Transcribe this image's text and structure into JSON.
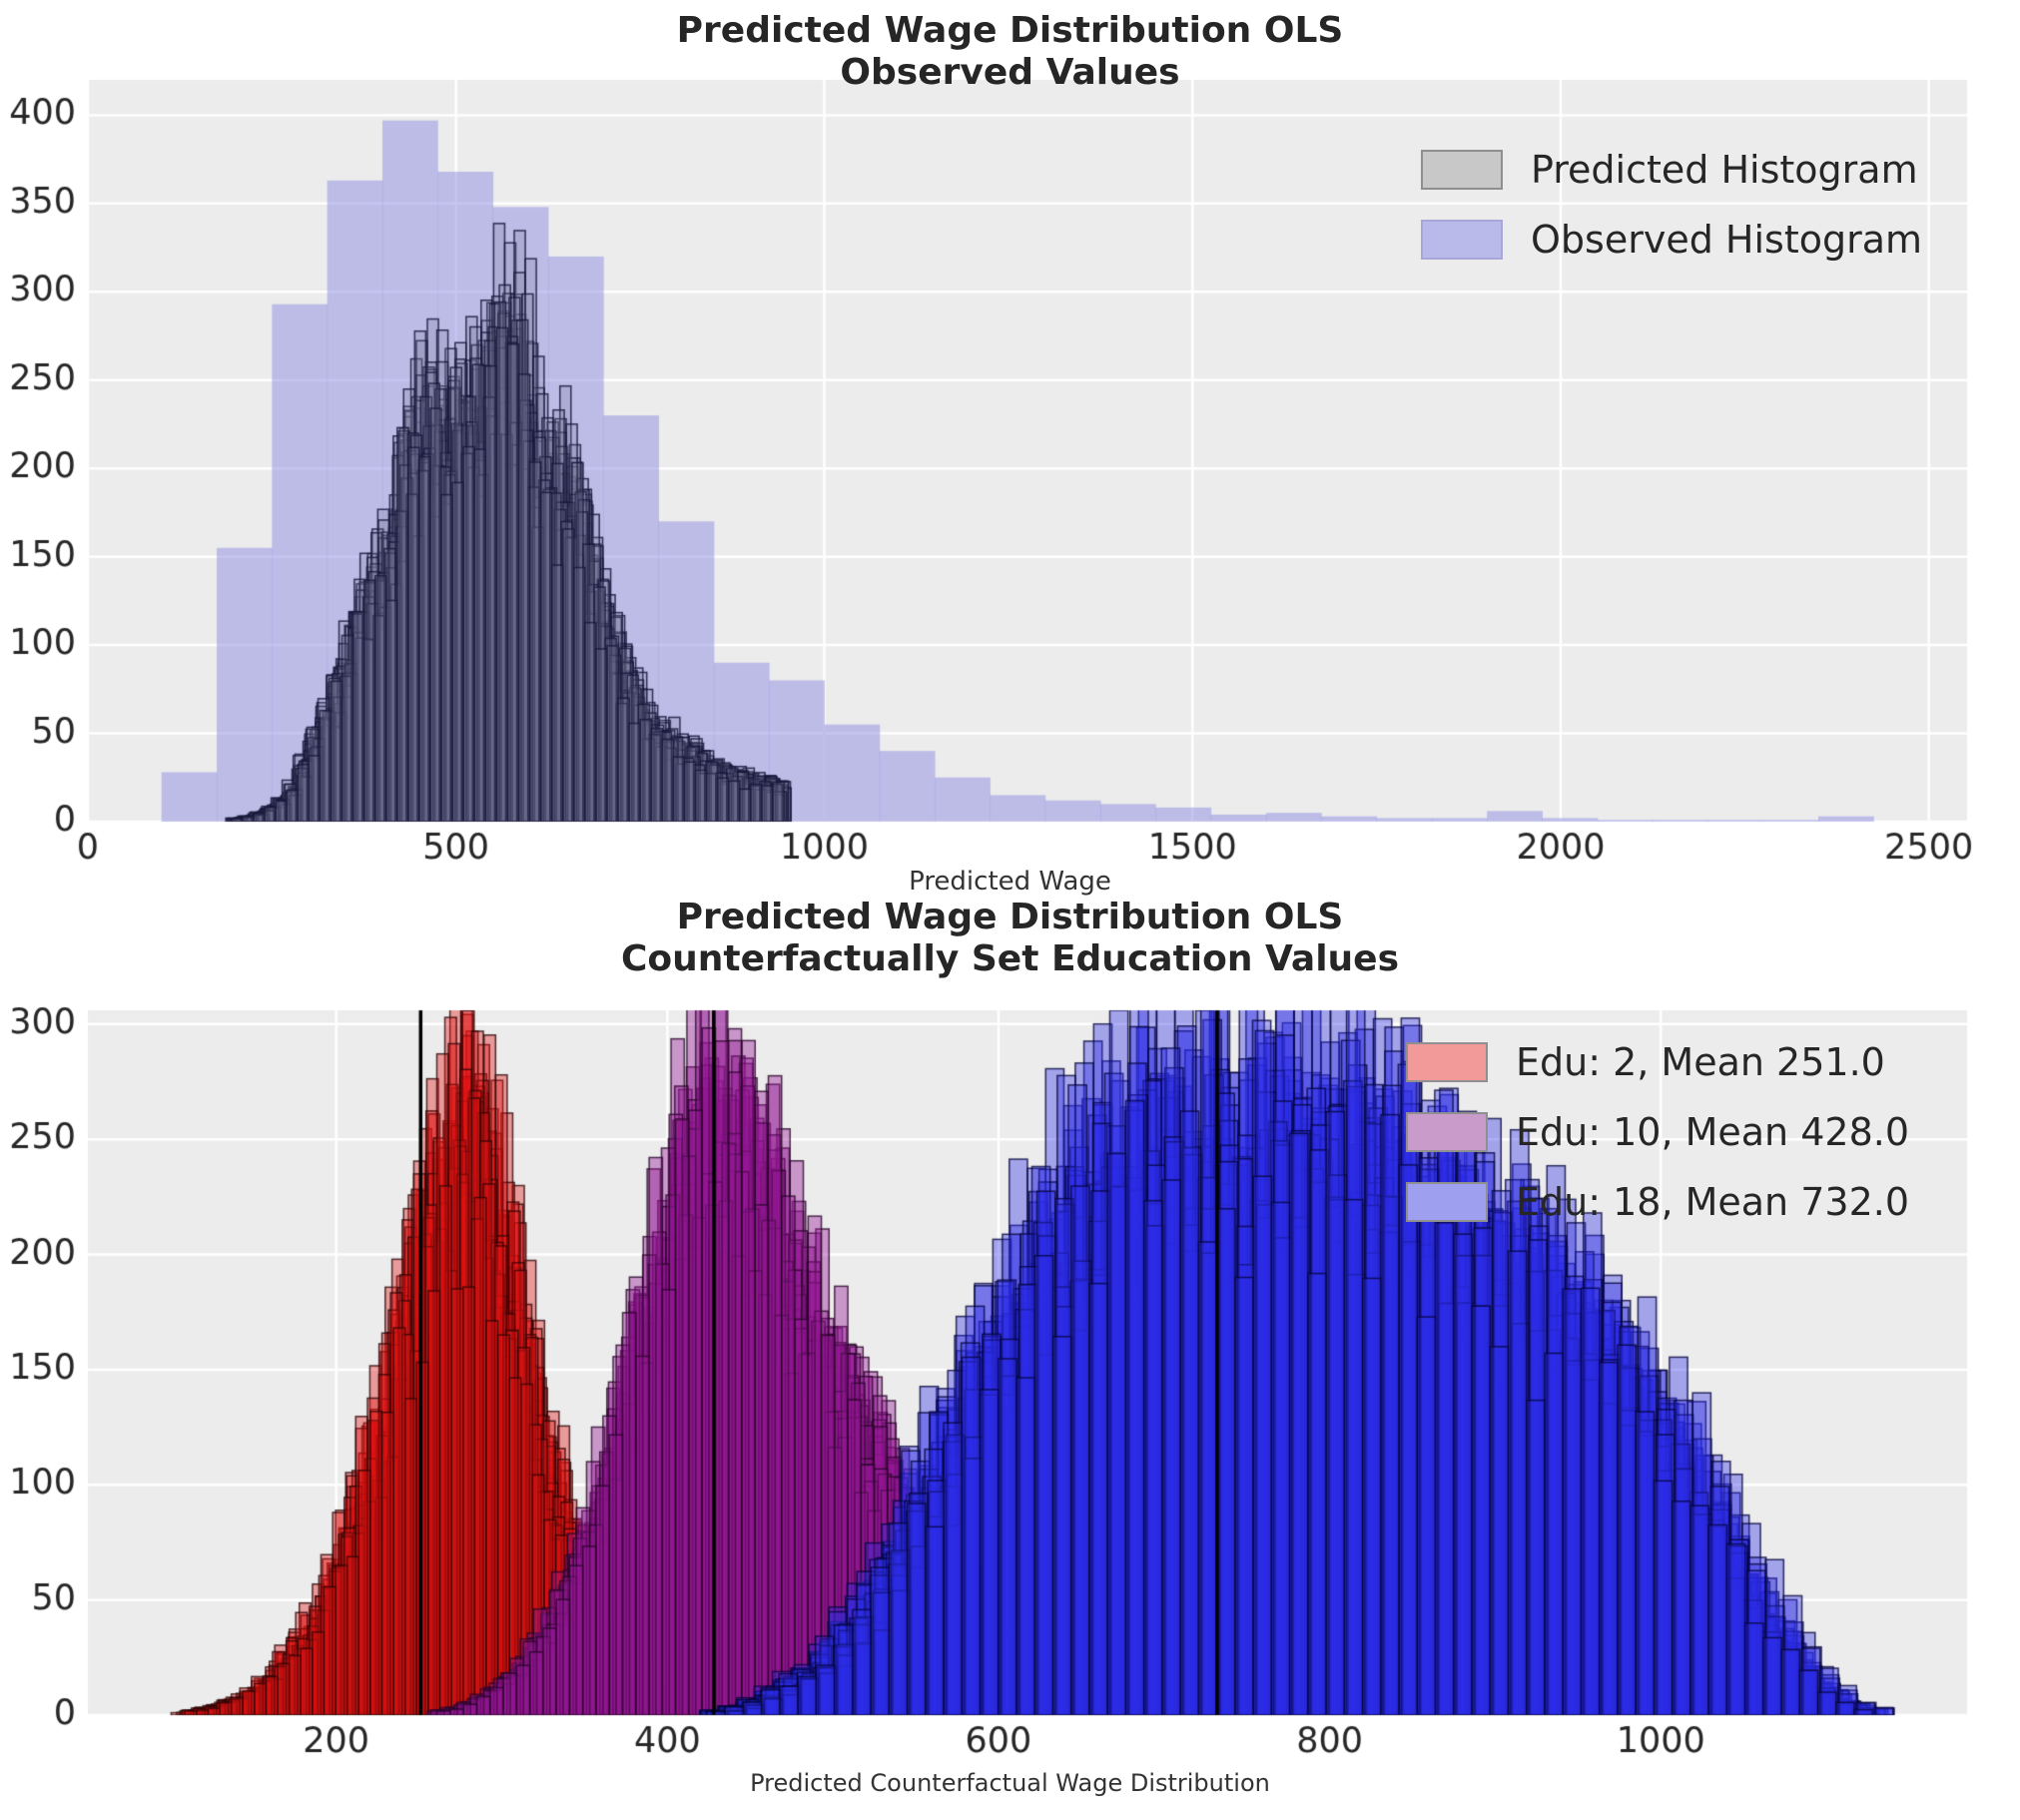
{
  "figure": {
    "background": "#ffffff",
    "axes_background": "#ececec",
    "grid_color": "#ffffff",
    "tick_color": "#262626",
    "tick_font_px": 35
  },
  "chart_data": [
    {
      "type": "bar",
      "variant": "overlaid-histograms",
      "title": "Predicted Wage Distribution OLS",
      "subtitle": "Observed Values",
      "xlabel": "Predicted Wage",
      "ylabel": "",
      "xlim": [
        0,
        2552
      ],
      "ylim": [
        0,
        420
      ],
      "xticks": [
        0,
        500,
        1000,
        1500,
        2000,
        2500
      ],
      "yticks": [
        0,
        50,
        100,
        150,
        200,
        250,
        300,
        350,
        400
      ],
      "grid": true,
      "legend_position": "upper right",
      "legend": [
        {
          "label": "Predicted Histogram",
          "swatch": "#c8c8c8",
          "swatch_border": "#8f8f8f"
        },
        {
          "label": "Observed Histogram",
          "swatch": "#b9b9ea",
          "swatch_border": "#a6a6d8"
        }
      ],
      "series": [
        {
          "name": "Observed Histogram",
          "kind": "bars",
          "bin_start": 100,
          "bin_width": 75,
          "counts": [
            28,
            155,
            293,
            363,
            397,
            368,
            348,
            320,
            230,
            170,
            90,
            80,
            55,
            40,
            25,
            15,
            12,
            10,
            8,
            4,
            5,
            3,
            2,
            2,
            6,
            2,
            1,
            1,
            1,
            1,
            3
          ],
          "fill": "rgba(150,150,228,0.55)"
        },
        {
          "name": "Predicted Histogram",
          "kind": "ensemble",
          "bin_start": 196,
          "bin_width": 15,
          "counts": [
            2,
            3,
            5,
            8,
            12,
            20,
            35,
            50,
            65,
            80,
            100,
            120,
            140,
            152,
            165,
            210,
            228,
            235,
            240,
            245,
            250,
            258,
            268,
            280,
            290,
            286,
            268,
            232,
            215,
            206,
            210,
            190,
            160,
            130,
            110,
            90,
            75,
            65,
            58,
            52,
            46,
            42,
            38,
            34,
            30,
            28,
            26,
            25,
            24,
            22
          ],
          "draws": 22,
          "seed": 7,
          "scale_jitter": [
            0.72,
            1.1
          ],
          "x_jitter": 9,
          "fill": "rgba(120,120,150,0.22)",
          "edge": "rgba(25,25,60,0.85)"
        }
      ]
    },
    {
      "type": "bar",
      "variant": "overlaid-histograms",
      "title": "Predicted Wage Distribution OLS",
      "subtitle": "Counterfactually Set Education Values",
      "xlabel": "Predicted Counterfactual Wage Distribution",
      "ylabel": "",
      "xlim": [
        50,
        1185
      ],
      "ylim": [
        0,
        306
      ],
      "xticks": [
        200,
        400,
        600,
        800,
        1000
      ],
      "yticks": [
        0,
        50,
        100,
        150,
        200,
        250,
        300
      ],
      "grid": true,
      "legend_position": "upper right",
      "legend": [
        {
          "label": "Edu: 2, Mean 251.0",
          "swatch": "#f29a9a",
          "swatch_border": "#8f8f8f"
        },
        {
          "label": "Edu: 10, Mean 428.0",
          "swatch": "#c89bcb",
          "swatch_border": "#8f8f8f"
        },
        {
          "label": "Edu: 18, Mean 732.0",
          "swatch": "#9f9ff0",
          "swatch_border": "#8f8f8f"
        }
      ],
      "mean_lines": [
        {
          "x": 251,
          "color": "#000000"
        },
        {
          "x": 428,
          "color": "#000000"
        },
        {
          "x": 732,
          "color": "#000000"
        }
      ],
      "series": [
        {
          "name": "Edu: 2",
          "kind": "ensemble",
          "bin_start": 104,
          "bin_width": 7,
          "counts": [
            1,
            2,
            3,
            4,
            6,
            8,
            11,
            15,
            20,
            26,
            33,
            42,
            52,
            64,
            78,
            94,
            112,
            132,
            154,
            178,
            202,
            226,
            248,
            266,
            278,
            272,
            258,
            238,
            214,
            188,
            162,
            136,
            112,
            91,
            73,
            58,
            45,
            35,
            27,
            21,
            16,
            12,
            9,
            7,
            5,
            4,
            3,
            3,
            2,
            2,
            1,
            1,
            1,
            1
          ],
          "draws": 20,
          "seed": 3,
          "scale_jitter": [
            0.72,
            1.12
          ],
          "x_jitter": 6,
          "fill": "rgba(225,18,18,0.38)",
          "edge": "rgba(45,5,5,0.8)"
        },
        {
          "name": "Edu: 10",
          "kind": "ensemble",
          "bin_start": 262,
          "bin_width": 8,
          "counts": [
            2,
            3,
            5,
            8,
            12,
            17,
            23,
            31,
            41,
            53,
            67,
            84,
            103,
            124,
            147,
            172,
            198,
            223,
            246,
            264,
            275,
            278,
            272,
            260,
            245,
            229,
            213,
            198,
            183,
            169,
            156,
            143,
            131,
            119,
            108,
            97,
            87,
            77,
            68,
            59,
            51,
            44,
            37,
            31,
            26,
            21,
            17,
            13,
            10,
            8,
            6,
            5,
            4,
            3,
            2,
            2
          ],
          "draws": 20,
          "seed": 11,
          "scale_jitter": [
            0.72,
            1.12
          ],
          "x_jitter": 7,
          "fill": "rgba(148,22,148,0.40)",
          "edge": "rgba(40,5,40,0.8)"
        },
        {
          "name": "Edu: 18",
          "kind": "ensemble",
          "bin_start": 428,
          "bin_width": 11,
          "counts": [
            2,
            4,
            7,
            11,
            16,
            22,
            30,
            40,
            52,
            66,
            82,
            100,
            118,
            136,
            155,
            174,
            192,
            209,
            224,
            237,
            247,
            255,
            260,
            263,
            265,
            266,
            267,
            268,
            269,
            270,
            271,
            272,
            272,
            271,
            269,
            266,
            262,
            257,
            251,
            245,
            238,
            231,
            224,
            217,
            210,
            202,
            194,
            186,
            178,
            169,
            159,
            148,
            136,
            122,
            107,
            91,
            75,
            59,
            44,
            31,
            20,
            12,
            6,
            3
          ],
          "draws": 20,
          "seed": 19,
          "scale_jitter": [
            0.72,
            1.12
          ],
          "x_jitter": 9,
          "fill": "rgba(45,45,232,0.38)",
          "edge": "rgba(5,5,60,0.8)"
        }
      ]
    }
  ]
}
